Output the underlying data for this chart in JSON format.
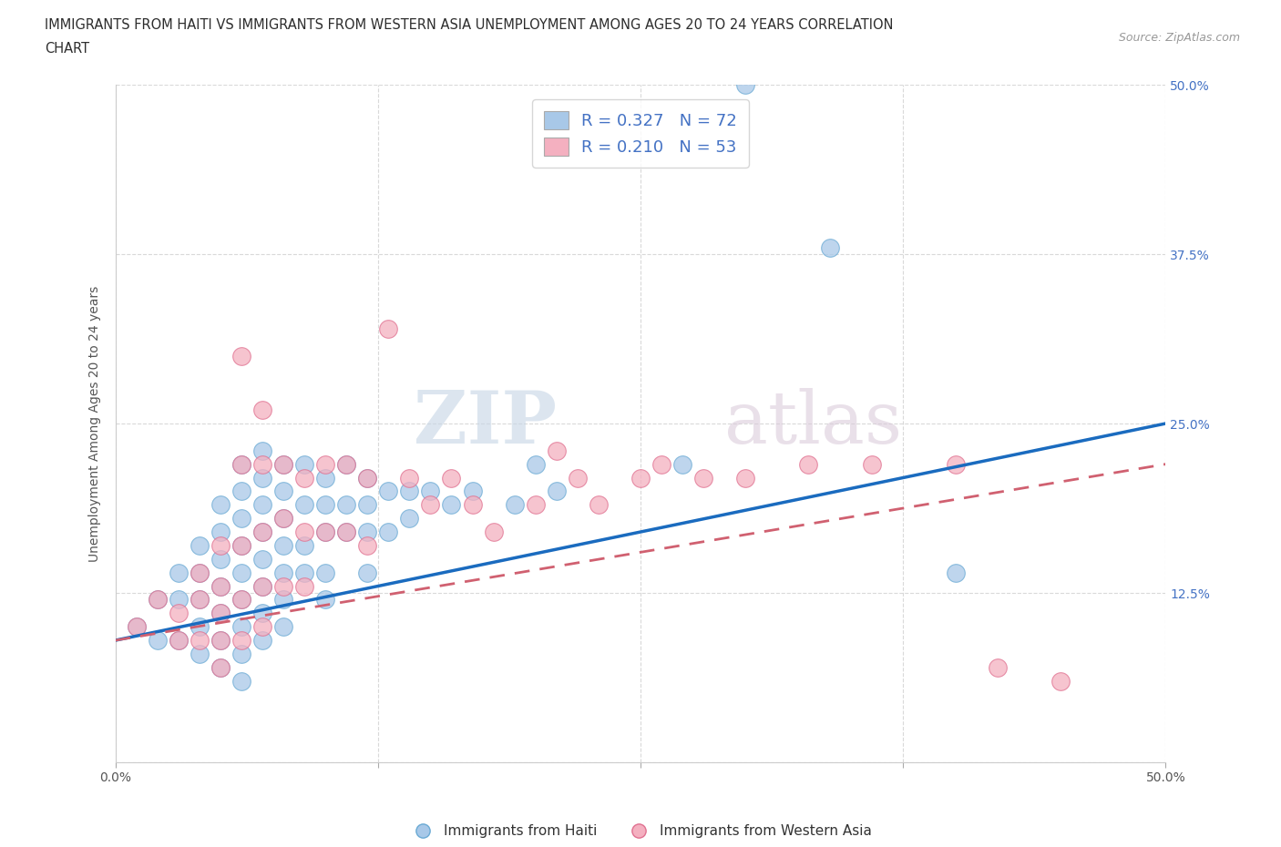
{
  "title_line1": "IMMIGRANTS FROM HAITI VS IMMIGRANTS FROM WESTERN ASIA UNEMPLOYMENT AMONG AGES 20 TO 24 YEARS CORRELATION",
  "title_line2": "CHART",
  "source": "Source: ZipAtlas.com",
  "ylabel": "Unemployment Among Ages 20 to 24 years",
  "xlim": [
    0.0,
    0.5
  ],
  "ylim": [
    0.0,
    0.5
  ],
  "xticks": [
    0.0,
    0.125,
    0.25,
    0.375,
    0.5
  ],
  "yticks": [
    0.0,
    0.125,
    0.25,
    0.375,
    0.5
  ],
  "xtick_labels": [
    "0.0%",
    "",
    "",
    "",
    "50.0%"
  ],
  "ytick_labels": [
    "",
    "",
    "",
    "",
    ""
  ],
  "right_ytick_labels": [
    "",
    "12.5%",
    "25.0%",
    "37.5%",
    "50.0%"
  ],
  "haiti_color": "#a8c8e8",
  "haiti_edge_color": "#6aaad4",
  "western_asia_color": "#f4b0c0",
  "western_asia_edge_color": "#e07090",
  "haiti_line_color": "#1a6bbf",
  "western_asia_line_color": "#d06070",
  "western_asia_line_dash": true,
  "haiti_R": 0.327,
  "haiti_N": 72,
  "western_asia_R": 0.21,
  "western_asia_N": 53,
  "haiti_scatter_x": [
    0.01,
    0.02,
    0.02,
    0.03,
    0.03,
    0.03,
    0.04,
    0.04,
    0.04,
    0.04,
    0.04,
    0.05,
    0.05,
    0.05,
    0.05,
    0.05,
    0.05,
    0.05,
    0.06,
    0.06,
    0.06,
    0.06,
    0.06,
    0.06,
    0.06,
    0.06,
    0.06,
    0.07,
    0.07,
    0.07,
    0.07,
    0.07,
    0.07,
    0.07,
    0.07,
    0.08,
    0.08,
    0.08,
    0.08,
    0.08,
    0.08,
    0.08,
    0.09,
    0.09,
    0.09,
    0.09,
    0.1,
    0.1,
    0.1,
    0.1,
    0.1,
    0.11,
    0.11,
    0.11,
    0.12,
    0.12,
    0.12,
    0.12,
    0.13,
    0.13,
    0.14,
    0.14,
    0.15,
    0.16,
    0.17,
    0.19,
    0.2,
    0.21,
    0.27,
    0.34,
    0.4,
    0.3
  ],
  "haiti_scatter_y": [
    0.1,
    0.12,
    0.09,
    0.14,
    0.12,
    0.09,
    0.16,
    0.14,
    0.12,
    0.1,
    0.08,
    0.19,
    0.17,
    0.15,
    0.13,
    0.11,
    0.09,
    0.07,
    0.22,
    0.2,
    0.18,
    0.16,
    0.14,
    0.12,
    0.1,
    0.08,
    0.06,
    0.23,
    0.21,
    0.19,
    0.17,
    0.15,
    0.13,
    0.11,
    0.09,
    0.22,
    0.2,
    0.18,
    0.16,
    0.14,
    0.12,
    0.1,
    0.22,
    0.19,
    0.16,
    0.14,
    0.21,
    0.19,
    0.17,
    0.14,
    0.12,
    0.22,
    0.19,
    0.17,
    0.21,
    0.19,
    0.17,
    0.14,
    0.2,
    0.17,
    0.2,
    0.18,
    0.2,
    0.19,
    0.2,
    0.19,
    0.22,
    0.2,
    0.22,
    0.38,
    0.14,
    0.5
  ],
  "western_asia_scatter_x": [
    0.01,
    0.02,
    0.03,
    0.03,
    0.04,
    0.04,
    0.04,
    0.05,
    0.05,
    0.05,
    0.05,
    0.05,
    0.06,
    0.06,
    0.06,
    0.06,
    0.06,
    0.07,
    0.07,
    0.07,
    0.07,
    0.07,
    0.08,
    0.08,
    0.08,
    0.09,
    0.09,
    0.09,
    0.1,
    0.1,
    0.11,
    0.11,
    0.12,
    0.12,
    0.13,
    0.14,
    0.15,
    0.16,
    0.17,
    0.18,
    0.2,
    0.21,
    0.22,
    0.23,
    0.25,
    0.26,
    0.28,
    0.3,
    0.33,
    0.36,
    0.4,
    0.42,
    0.45
  ],
  "western_asia_scatter_y": [
    0.1,
    0.12,
    0.11,
    0.09,
    0.14,
    0.12,
    0.09,
    0.16,
    0.13,
    0.11,
    0.09,
    0.07,
    0.3,
    0.22,
    0.16,
    0.12,
    0.09,
    0.26,
    0.22,
    0.17,
    0.13,
    0.1,
    0.22,
    0.18,
    0.13,
    0.21,
    0.17,
    0.13,
    0.22,
    0.17,
    0.22,
    0.17,
    0.21,
    0.16,
    0.32,
    0.21,
    0.19,
    0.21,
    0.19,
    0.17,
    0.19,
    0.23,
    0.21,
    0.19,
    0.21,
    0.22,
    0.21,
    0.21,
    0.22,
    0.22,
    0.22,
    0.07,
    0.06
  ],
  "watermark_zip": "ZIP",
  "watermark_atlas": "atlas",
  "background_color": "#ffffff",
  "grid_color": "#d0d0d0",
  "legend_text_color": "#4472c4",
  "right_ytick_color": "#4472c4"
}
